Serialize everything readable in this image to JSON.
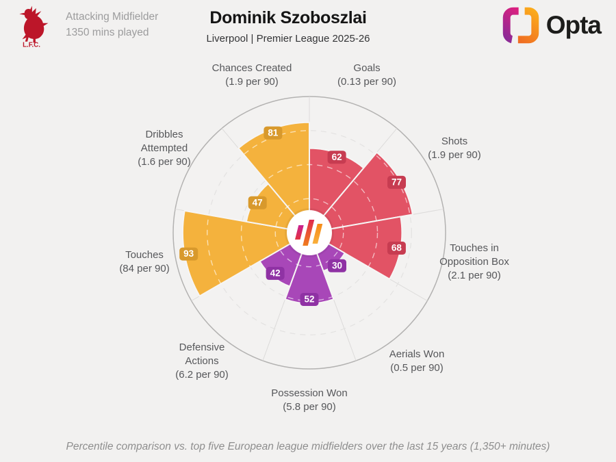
{
  "header": {
    "club_abbr": "L.F.C.",
    "player_meta": {
      "line1": "Attacking Midfielder",
      "line2": "1350 mins played"
    },
    "title": "Dominik Szoboszlai",
    "subtitle": "Liverpool | Premier League 2025-26",
    "brand": "Opta"
  },
  "footer": {
    "caption": "Percentile comparison vs. top five European league midfielders over the last 15 years (1,350+ minutes)"
  },
  "chart_data": {
    "type": "bar",
    "variant": "polar-pizza-percentile",
    "title": "Dominik Szoboszlai percentile radar",
    "scale": {
      "min": 0,
      "max": 100,
      "gridlines": [
        25,
        50,
        75
      ]
    },
    "start_angle_deg": 0,
    "sector_span_deg": 40,
    "grid": "dashed-circles",
    "legend_position": "none",
    "categories": [
      "Goals",
      "Shots",
      "Touches in Opposition Box",
      "Aerials Won",
      "Possession Won",
      "Defensive Actions",
      "Touches",
      "Dribbles Attempted",
      "Chances Created"
    ],
    "values": [
      62,
      77,
      68,
      30,
      52,
      42,
      93,
      47,
      81
    ],
    "per_90": [
      "0.13 per 90",
      "1.9 per 90",
      "2.1 per 90",
      "0.5 per 90",
      "5.8 per 90",
      "6.2 per 90",
      "84 per 90",
      "1.6 per 90",
      "1.9 per 90"
    ],
    "label_lines": [
      [
        "Goals",
        "(0.13 per 90)"
      ],
      [
        "Shots",
        "(1.9 per 90)"
      ],
      [
        "Touches in",
        "Opposition Box",
        "(2.1 per 90)"
      ],
      [
        "Aerials Won",
        "(0.5 per 90)"
      ],
      [
        "Possession Won",
        "(5.8 per 90)"
      ],
      [
        "Defensive",
        "Actions",
        "(6.2 per 90)"
      ],
      [
        "Touches",
        "(84 per 90)"
      ],
      [
        "Dribbles",
        "Attempted",
        "(1.6 per 90)"
      ],
      [
        "Chances Created",
        "(1.9 per 90)"
      ]
    ],
    "groups": [
      "attacking",
      "attacking",
      "attacking",
      "defending",
      "defending",
      "defending",
      "possession",
      "possession",
      "possession"
    ],
    "colors": {
      "attacking": "#e25365",
      "attacking_badge": "#c73c51",
      "defending": "#a847b8",
      "defending_badge": "#8f32a4",
      "possession": "#f4b23d",
      "possession_badge": "#d8992c",
      "ring": "#b3b2b1",
      "gridline": "#e3e2e1",
      "background": "#f2f1f0"
    }
  }
}
